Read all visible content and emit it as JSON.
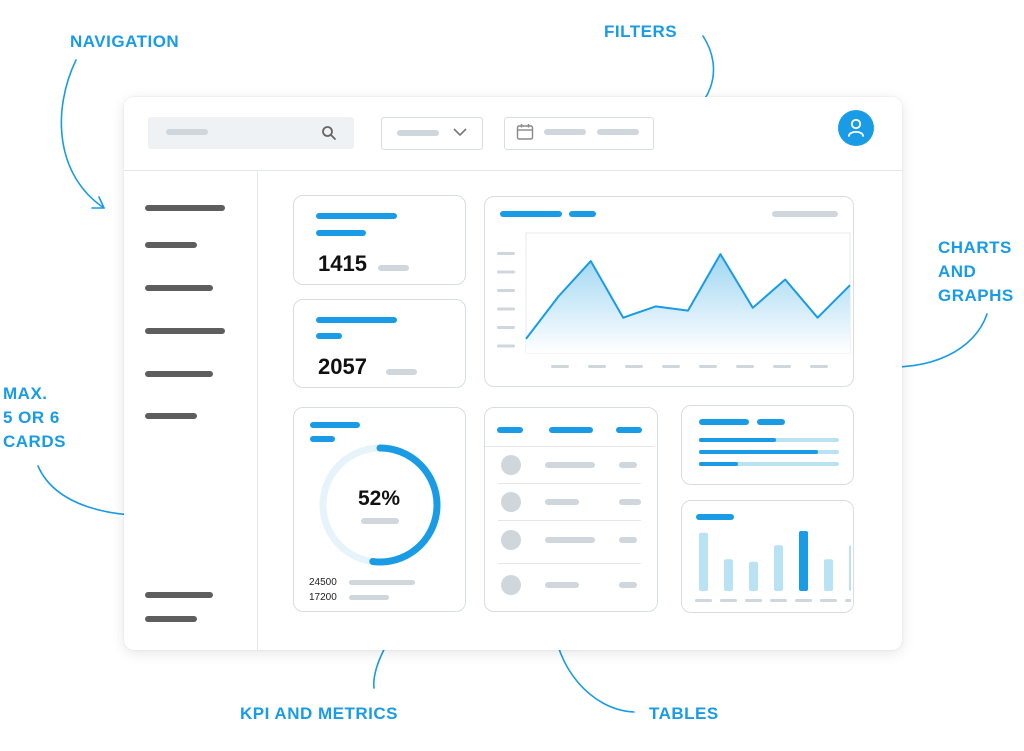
{
  "annotations": {
    "navigation": "NAVIGATION",
    "filters": "FILTERS",
    "charts": [
      "CHARTS",
      "AND",
      "GRAPHS"
    ],
    "cards": [
      "MAX.",
      "5 OR 6",
      "CARDS"
    ],
    "kpi": "KPI AND METRICS",
    "tables": "TABLES"
  },
  "kpi_cards": [
    {
      "value": "1415"
    },
    {
      "value": "2057"
    }
  ],
  "donut": {
    "percent_label": "52%",
    "percent": 52,
    "legend": [
      "24500",
      "17200"
    ]
  },
  "area_chart": {
    "values": [
      10,
      40,
      65,
      25,
      33,
      30,
      70,
      32,
      52,
      25,
      48
    ]
  },
  "bar_chart": {
    "values": [
      0.7,
      0.38,
      0.35,
      0.55,
      0.72,
      0.38,
      0.55
    ],
    "highlight_index": 4
  },
  "progress_bars": [
    0.55,
    0.85,
    0.28
  ],
  "colors": {
    "accent": "#1a9be6",
    "light_accent": "#b9e2f5",
    "gray": "#5e5e5e",
    "skeleton": "#cfd6dc"
  },
  "icons": {
    "search": "search-icon",
    "chevron": "chevron-down-icon",
    "calendar": "calendar-icon",
    "avatar": "user-icon"
  }
}
